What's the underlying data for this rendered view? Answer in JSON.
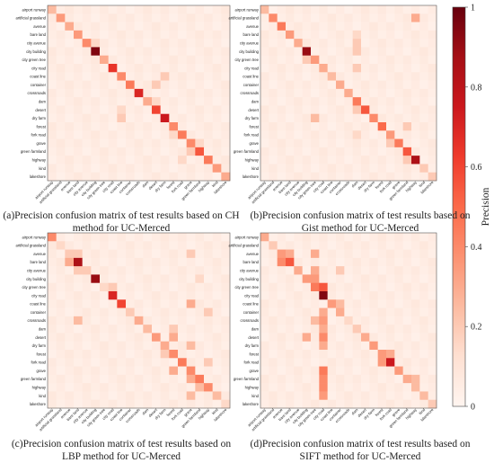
{
  "figure": {
    "captions": [
      "(a)Precision confusion matrix of test results based on CH method for UC-Merced",
      "(b)Precision confusion matrix of test results based on Gist method for UC-Merced",
      "(c)Precision confusion matrix of test results based on LBP method for UC-Merced",
      "(d)Precision confusion matrix of test results based on SIFT method for UC-Merced"
    ]
  },
  "colorbar": {
    "label": "Precision",
    "ticks": [
      "1",
      "0.8",
      "0.6",
      "0.4",
      "0.2",
      "0"
    ],
    "colormap": [
      "#fff5f0",
      "#fee0d2",
      "#fcbba1",
      "#fc9272",
      "#fb6a4a",
      "#ef3b2c",
      "#cb181d",
      "#a50f15",
      "#67000d"
    ]
  },
  "chart_data": [
    {
      "type": "heatmap",
      "title": "",
      "classes": [
        "airport runway",
        "artificial grassland",
        "avenue",
        "bare land",
        "city avenue",
        "city building",
        "city green tree",
        "city road",
        "coast line",
        "container",
        "crossroads",
        "dam",
        "desert",
        "dry farm",
        "forest",
        "fork road",
        "grave",
        "green farmland",
        "highway",
        "kind",
        "lakeshore"
      ],
      "diagonal": [
        0.25,
        0.35,
        0.3,
        0.35,
        0.4,
        0.95,
        0.3,
        0.65,
        0.4,
        0.45,
        0.7,
        0.3,
        0.6,
        0.75,
        0.4,
        0.45,
        0.4,
        0.55,
        0.45,
        0.35,
        0.3
      ],
      "off_diagonal": [
        [
          8,
          13,
          0.2
        ],
        [
          9,
          12,
          0.2
        ],
        [
          4,
          5,
          0.15
        ],
        [
          12,
          8,
          0.15
        ],
        [
          13,
          8,
          0.2
        ],
        [
          15,
          14,
          0.15
        ],
        [
          16,
          17,
          0.15
        ],
        [
          18,
          15,
          0.15
        ],
        [
          17,
          16,
          0.2
        ],
        [
          11,
          12,
          0.15
        ]
      ],
      "ylim": [
        0,
        1
      ]
    },
    {
      "type": "heatmap",
      "title": "",
      "classes": [
        "airport runway",
        "artificial grassland",
        "avenue",
        "bare land",
        "city avenue",
        "city building",
        "city green tree",
        "city road",
        "coast line",
        "container",
        "crossroads",
        "dam",
        "desert",
        "dry farm",
        "forest",
        "fork road",
        "grave",
        "green farmland",
        "highway",
        "kind",
        "lakeshore"
      ],
      "diagonal": [
        0.25,
        0.4,
        0.45,
        0.35,
        0.3,
        0.9,
        0.35,
        0.3,
        0.25,
        0.3,
        0.3,
        0.45,
        0.55,
        0.4,
        0.5,
        0.35,
        0.45,
        0.55,
        0.85,
        0.2,
        0.2
      ],
      "off_diagonal": [
        [
          1,
          18,
          0.3
        ],
        [
          4,
          11,
          0.2
        ],
        [
          5,
          11,
          0.2
        ],
        [
          7,
          11,
          0.2
        ],
        [
          6,
          5,
          0.2
        ],
        [
          12,
          11,
          0.2
        ],
        [
          13,
          6,
          0.25
        ],
        [
          14,
          17,
          0.2
        ],
        [
          16,
          15,
          0.2
        ],
        [
          18,
          17,
          0.2
        ],
        [
          3,
          11,
          0.15
        ],
        [
          15,
          11,
          0.15
        ]
      ],
      "ylim": [
        0,
        1
      ]
    },
    {
      "type": "heatmap",
      "title": "",
      "classes": [
        "airport runway",
        "artificial grassland",
        "avenue",
        "bare land",
        "city avenue",
        "city building",
        "city green tree",
        "city road",
        "coast line",
        "container",
        "crossroads",
        "dam",
        "desert",
        "dry farm",
        "forest",
        "fork road",
        "grave",
        "green farmland",
        "highway",
        "kind",
        "lakeshore"
      ],
      "diagonal": [
        0.4,
        0.15,
        0.2,
        0.85,
        0.2,
        0.9,
        0.15,
        0.7,
        0.6,
        0.2,
        0.3,
        0.25,
        0.35,
        0.3,
        0.4,
        0.45,
        0.4,
        0.45,
        0.4,
        0.25,
        0.15
      ],
      "off_diagonal": [
        [
          3,
          2,
          0.3
        ],
        [
          4,
          3,
          0.2
        ],
        [
          2,
          3,
          0.2
        ],
        [
          8,
          16,
          0.3
        ],
        [
          10,
          3,
          0.25
        ],
        [
          11,
          14,
          0.2
        ],
        [
          12,
          14,
          0.3
        ],
        [
          13,
          16,
          0.25
        ],
        [
          14,
          13,
          0.2
        ],
        [
          16,
          14,
          0.3
        ],
        [
          17,
          16,
          0.3
        ],
        [
          18,
          17,
          0.25
        ],
        [
          19,
          16,
          0.25
        ],
        [
          6,
          7,
          0.2
        ],
        [
          9,
          18,
          0.2
        ],
        [
          15,
          18,
          0.2
        ],
        [
          2,
          16,
          0.2
        ],
        [
          5,
          17,
          0.15
        ]
      ],
      "ylim": [
        0,
        1
      ]
    },
    {
      "type": "heatmap",
      "title": "",
      "classes": [
        "airport runway",
        "artificial grassland",
        "avenue",
        "bare land",
        "city avenue",
        "city building",
        "city green tree",
        "city road",
        "coast line",
        "container",
        "crossroads",
        "dam",
        "desert",
        "dry farm",
        "forest",
        "fork road",
        "grave",
        "green farmland",
        "highway",
        "kind",
        "lakeshore"
      ],
      "diagonal": [
        0.3,
        0.2,
        0.35,
        0.55,
        0.3,
        0.35,
        0.45,
        0.95,
        0.35,
        0.3,
        0.15,
        0.2,
        0.3,
        0.35,
        0.35,
        0.75,
        0.35,
        0.3,
        0.25,
        0.25,
        0.2
      ],
      "off_diagonal": [
        [
          2,
          3,
          0.3
        ],
        [
          3,
          2,
          0.4
        ],
        [
          4,
          6,
          0.3
        ],
        [
          5,
          6,
          0.35
        ],
        [
          6,
          7,
          0.55
        ],
        [
          9,
          7,
          0.3
        ],
        [
          10,
          7,
          0.35
        ],
        [
          11,
          7,
          0.3
        ],
        [
          12,
          7,
          0.4
        ],
        [
          13,
          7,
          0.3
        ],
        [
          14,
          15,
          0.3
        ],
        [
          15,
          14,
          0.35
        ],
        [
          16,
          7,
          0.45
        ],
        [
          17,
          7,
          0.4
        ],
        [
          18,
          7,
          0.4
        ],
        [
          19,
          7,
          0.35
        ],
        [
          2,
          6,
          0.3
        ],
        [
          8,
          9,
          0.25
        ],
        [
          10,
          6,
          0.25
        ],
        [
          12,
          5,
          0.3
        ],
        [
          4,
          9,
          0.2
        ],
        [
          17,
          18,
          0.25
        ]
      ],
      "ylim": [
        0,
        1
      ]
    }
  ]
}
